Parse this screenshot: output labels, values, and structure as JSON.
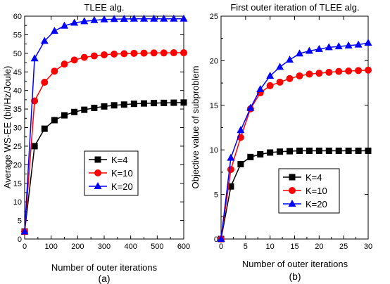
{
  "chart_data": [
    {
      "type": "line",
      "panel_label": "(a)",
      "title": "TLEE alg.",
      "xlabel": "Number of outer iterations",
      "ylabel": "Average WS-EE (bit/Hz/Joule)",
      "xlim": [
        0,
        600
      ],
      "ylim": [
        0,
        60
      ],
      "xticks": [
        0,
        100,
        200,
        300,
        400,
        500,
        600
      ],
      "yticks": [
        0,
        5,
        10,
        15,
        20,
        25,
        30,
        35,
        40,
        45,
        50,
        55,
        60
      ],
      "grid": false,
      "legend_position": "center-right",
      "x": [
        0,
        37.5,
        75,
        112.5,
        150,
        187.5,
        225,
        262.5,
        300,
        337.5,
        375,
        412.5,
        450,
        487.5,
        525,
        562.5,
        600
      ],
      "series": [
        {
          "name": "K=4",
          "marker": "square",
          "color": "#000000",
          "values": [
            2,
            25,
            29.7,
            32,
            33.3,
            34.2,
            34.8,
            35.3,
            35.7,
            36,
            36.2,
            36.4,
            36.5,
            36.6,
            36.65,
            36.7,
            36.75
          ]
        },
        {
          "name": "K=10",
          "marker": "circle",
          "color": "#ff0000",
          "values": [
            2,
            37.2,
            42.2,
            45.2,
            47.1,
            48.2,
            48.9,
            49.3,
            49.6,
            49.8,
            49.9,
            50,
            50.05,
            50.1,
            50.1,
            50.15,
            50.15
          ]
        },
        {
          "name": "K=20",
          "marker": "triangle",
          "color": "#0000ff",
          "values": [
            2,
            48.6,
            53.3,
            56,
            57.4,
            58.2,
            58.6,
            58.9,
            59.1,
            59.2,
            59.25,
            59.3,
            59.3,
            59.3,
            59.3,
            59.3,
            59.3
          ]
        }
      ]
    },
    {
      "type": "line",
      "panel_label": "(b)",
      "title": "First outer iteration of TLEE alg.",
      "xlabel": "Number of outer iterations",
      "ylabel": "Objective value of subproblem",
      "xlim": [
        0,
        30
      ],
      "ylim": [
        0,
        25
      ],
      "xticks": [
        0,
        5,
        10,
        15,
        20,
        25,
        30
      ],
      "yticks": [
        0,
        5,
        10,
        15,
        20,
        25
      ],
      "grid": false,
      "legend_position": "bottom-right",
      "x": [
        0,
        2,
        4,
        6,
        8,
        10,
        12,
        14,
        16,
        18,
        20,
        22,
        24,
        26,
        28,
        30
      ],
      "series": [
        {
          "name": "K=4",
          "marker": "square",
          "color": "#000000",
          "values": [
            0,
            5.9,
            8.4,
            9.2,
            9.5,
            9.7,
            9.8,
            9.85,
            9.9,
            9.9,
            9.9,
            9.9,
            9.9,
            9.9,
            9.9,
            9.9
          ]
        },
        {
          "name": "K=10",
          "marker": "circle",
          "color": "#ff0000",
          "values": [
            0,
            7.8,
            11.4,
            14.6,
            16.4,
            17.2,
            17.6,
            18,
            18.3,
            18.5,
            18.6,
            18.7,
            18.8,
            18.85,
            18.9,
            18.95
          ]
        },
        {
          "name": "K=20",
          "marker": "triangle",
          "color": "#0000ff",
          "values": [
            0,
            9.1,
            12.2,
            14.7,
            16.8,
            18.3,
            19.3,
            20.1,
            20.8,
            21.1,
            21.3,
            21.5,
            21.6,
            21.7,
            21.8,
            22
          ]
        }
      ]
    }
  ]
}
